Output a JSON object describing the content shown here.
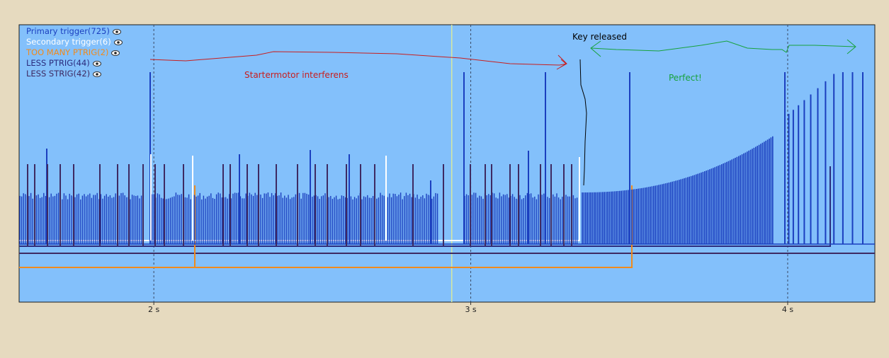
{
  "chart_data": {
    "type": "line",
    "title": "",
    "xlabel": "",
    "ylabel": "",
    "x_unit": "s",
    "xlim": [
      1.575,
      4.275
    ],
    "grid": "vertical dashed at labeled ticks",
    "ticks": [
      {
        "value": 2,
        "label": "2 s"
      },
      {
        "value": 3,
        "label": "3 s"
      },
      {
        "value": 4,
        "label": "4 s"
      }
    ],
    "cursor_x": 2.94,
    "series": [
      {
        "name": "Primary trigger(725)",
        "color": "#1b3fbf"
      },
      {
        "name": "Secondary trigger(6)",
        "color": "#ffffff"
      },
      {
        "name": "TOO MANY PTRIG(2)",
        "color": "#f08a1c"
      },
      {
        "name": "LESS PTRIG(44)",
        "color": "#2b2c7e"
      },
      {
        "name": "LESS STRIG(42)",
        "color": "#3e2a62"
      }
    ],
    "annotations": [
      {
        "text": "Key released",
        "color": "#000000"
      },
      {
        "text": "Startermotor interferens",
        "color": "#c81e1e"
      },
      {
        "text": "Perfect!",
        "color": "#17a23c"
      }
    ],
    "colors": {
      "plot_background": "#83c0fb",
      "page_background": "#e6dabf",
      "cursor": "#d6e8a0"
    }
  }
}
